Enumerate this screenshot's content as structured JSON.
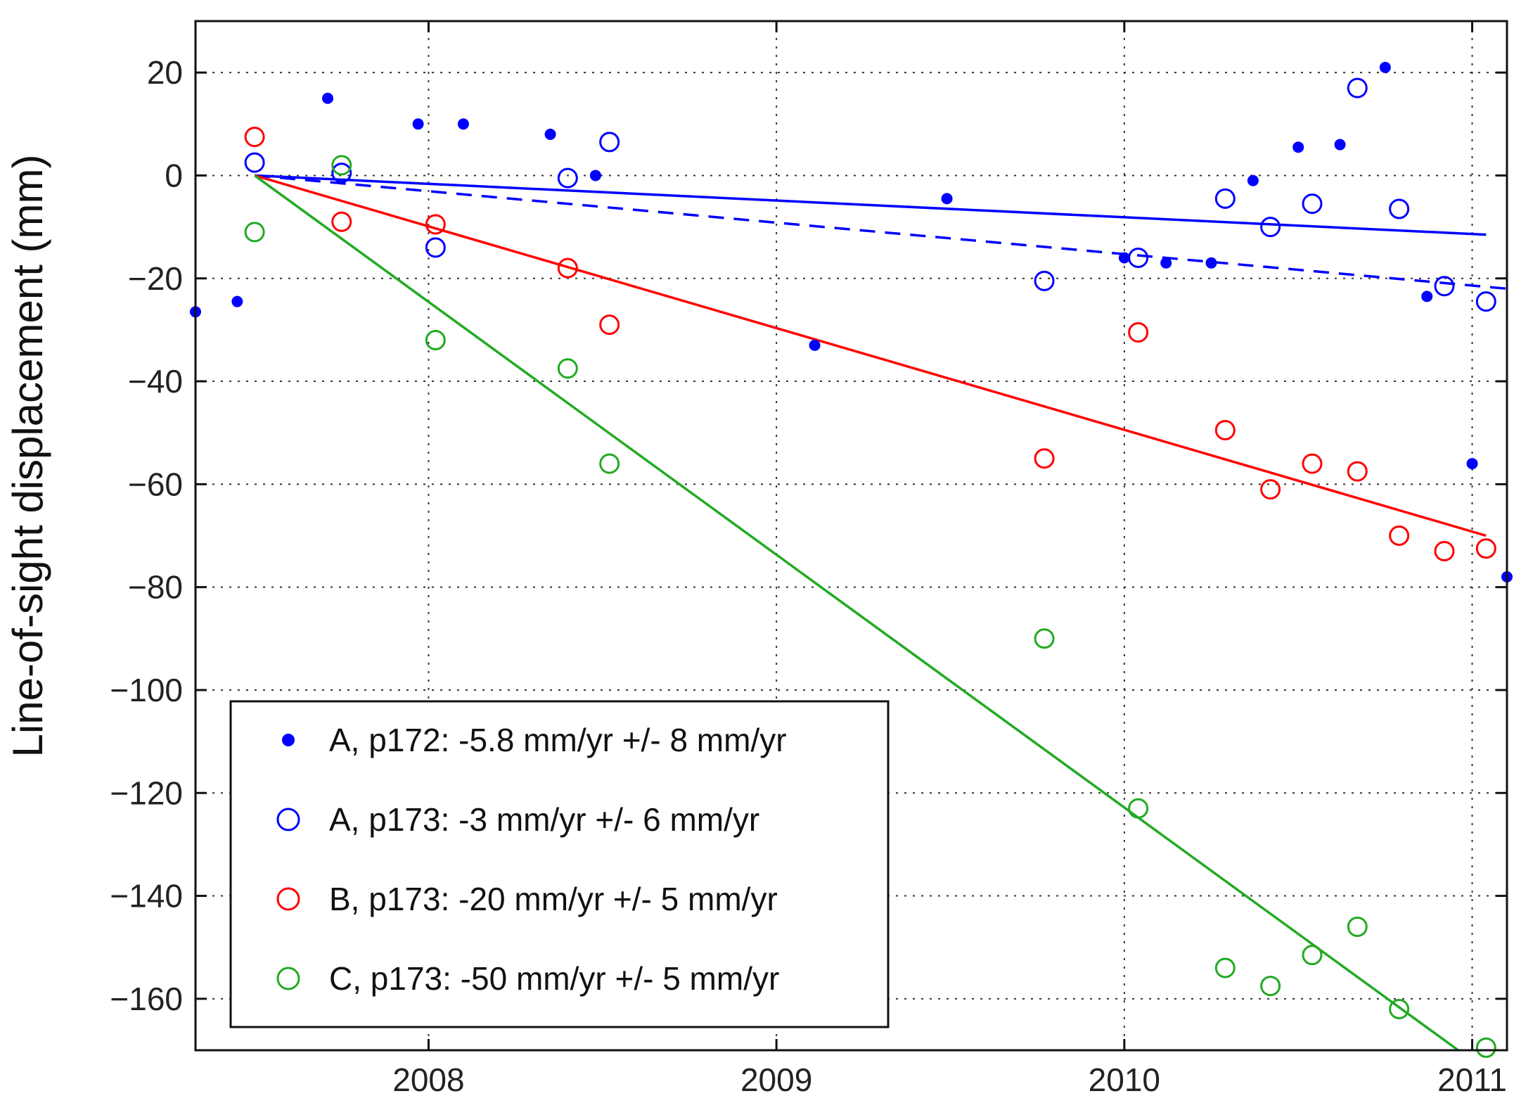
{
  "chart_data": {
    "type": "scatter",
    "title": "",
    "xlabel": "",
    "ylabel": "Line-of-sight displacement (mm)",
    "xlim": [
      2007.33,
      2011.1
    ],
    "ylim": [
      -170,
      30
    ],
    "xticks": [
      2008,
      2009,
      2010,
      2011
    ],
    "xtick_labels": [
      "2008",
      "2009",
      "2010",
      "2011"
    ],
    "yticks": [
      20,
      0,
      -20,
      -40,
      -60,
      -80,
      -100,
      -120,
      -140,
      -160
    ],
    "ytick_labels": [
      "20",
      "0",
      "−20",
      "−40",
      "−60",
      "−80",
      "−100",
      "−120",
      "−140",
      "−160"
    ],
    "grid": true,
    "legend_position": "bottom-left",
    "series": [
      {
        "name": "A, p172: -5.8 mm/yr +/- 8 mm/yr",
        "marker": "filled-dot",
        "color": "#0000ff",
        "x": [
          2007.33,
          2007.45,
          2007.71,
          2007.97,
          2008.1,
          2008.35,
          2008.48,
          2009.11,
          2009.49,
          2010.0,
          2010.12,
          2010.25,
          2010.37,
          2010.5,
          2010.62,
          2010.75,
          2010.87,
          2011.0,
          2011.1
        ],
        "y": [
          -26.5,
          -24.5,
          15,
          10,
          10,
          8,
          0,
          -33,
          -4.5,
          -16,
          -17,
          -17,
          -1,
          5.5,
          6,
          21,
          -23.5,
          -56,
          -78
        ]
      },
      {
        "name": "A, p173: -3 mm/yr +/- 6 mm/yr",
        "marker": "open-circle",
        "color": "#0000ff",
        "x": [
          2007.5,
          2007.75,
          2008.02,
          2008.4,
          2008.52,
          2009.77,
          2010.04,
          2010.29,
          2010.42,
          2010.54,
          2010.67,
          2010.79,
          2010.92,
          2011.04
        ],
        "y": [
          2.5,
          0.5,
          -14,
          -0.5,
          6.5,
          -20.5,
          -16,
          -4.5,
          -10,
          -5.5,
          17,
          -6.5,
          -21.5,
          -24.5
        ]
      },
      {
        "name": "B, p173: -20 mm/yr +/- 5 mm/yr",
        "marker": "open-circle",
        "color": "#ff0000",
        "x": [
          2007.5,
          2007.75,
          2008.02,
          2008.4,
          2008.52,
          2009.77,
          2010.04,
          2010.29,
          2010.42,
          2010.54,
          2010.67,
          2010.79,
          2010.92,
          2011.04
        ],
        "y": [
          7.5,
          -9,
          -9.5,
          -18,
          -29,
          -55,
          -30.5,
          -49.5,
          -61,
          -56,
          -57.5,
          -70,
          -73,
          -72.5
        ]
      },
      {
        "name": "C, p173: -50 mm/yr +/- 5 mm/yr",
        "marker": "open-circle",
        "color": "#22aa22",
        "x": [
          2007.5,
          2007.75,
          2008.02,
          2008.4,
          2008.52,
          2009.77,
          2010.04,
          2010.29,
          2010.42,
          2010.54,
          2010.67,
          2010.79,
          2011.04
        ],
        "y": [
          -11,
          2,
          -32,
          -37.5,
          -56,
          -90,
          -123,
          -154,
          -157.5,
          -151.5,
          -146,
          -162,
          -169.5
        ]
      }
    ],
    "fit_lines": [
      {
        "name": "A, p172 fit",
        "color": "#0000ff",
        "style": "solid",
        "x": [
          2007.5,
          2011.04
        ],
        "y": [
          0,
          -11.5
        ]
      },
      {
        "name": "A, p173 fit",
        "color": "#0000ff",
        "style": "dashed",
        "x": [
          2007.5,
          2011.1
        ],
        "y": [
          0,
          -22
        ]
      },
      {
        "name": "B, p173 fit",
        "color": "#ff0000",
        "style": "solid",
        "x": [
          2007.5,
          2011.04
        ],
        "y": [
          0,
          -70
        ]
      },
      {
        "name": "C, p173 fit",
        "color": "#22aa22",
        "style": "solid",
        "x": [
          2007.5,
          2010.96
        ],
        "y": [
          0,
          -170
        ]
      }
    ]
  }
}
